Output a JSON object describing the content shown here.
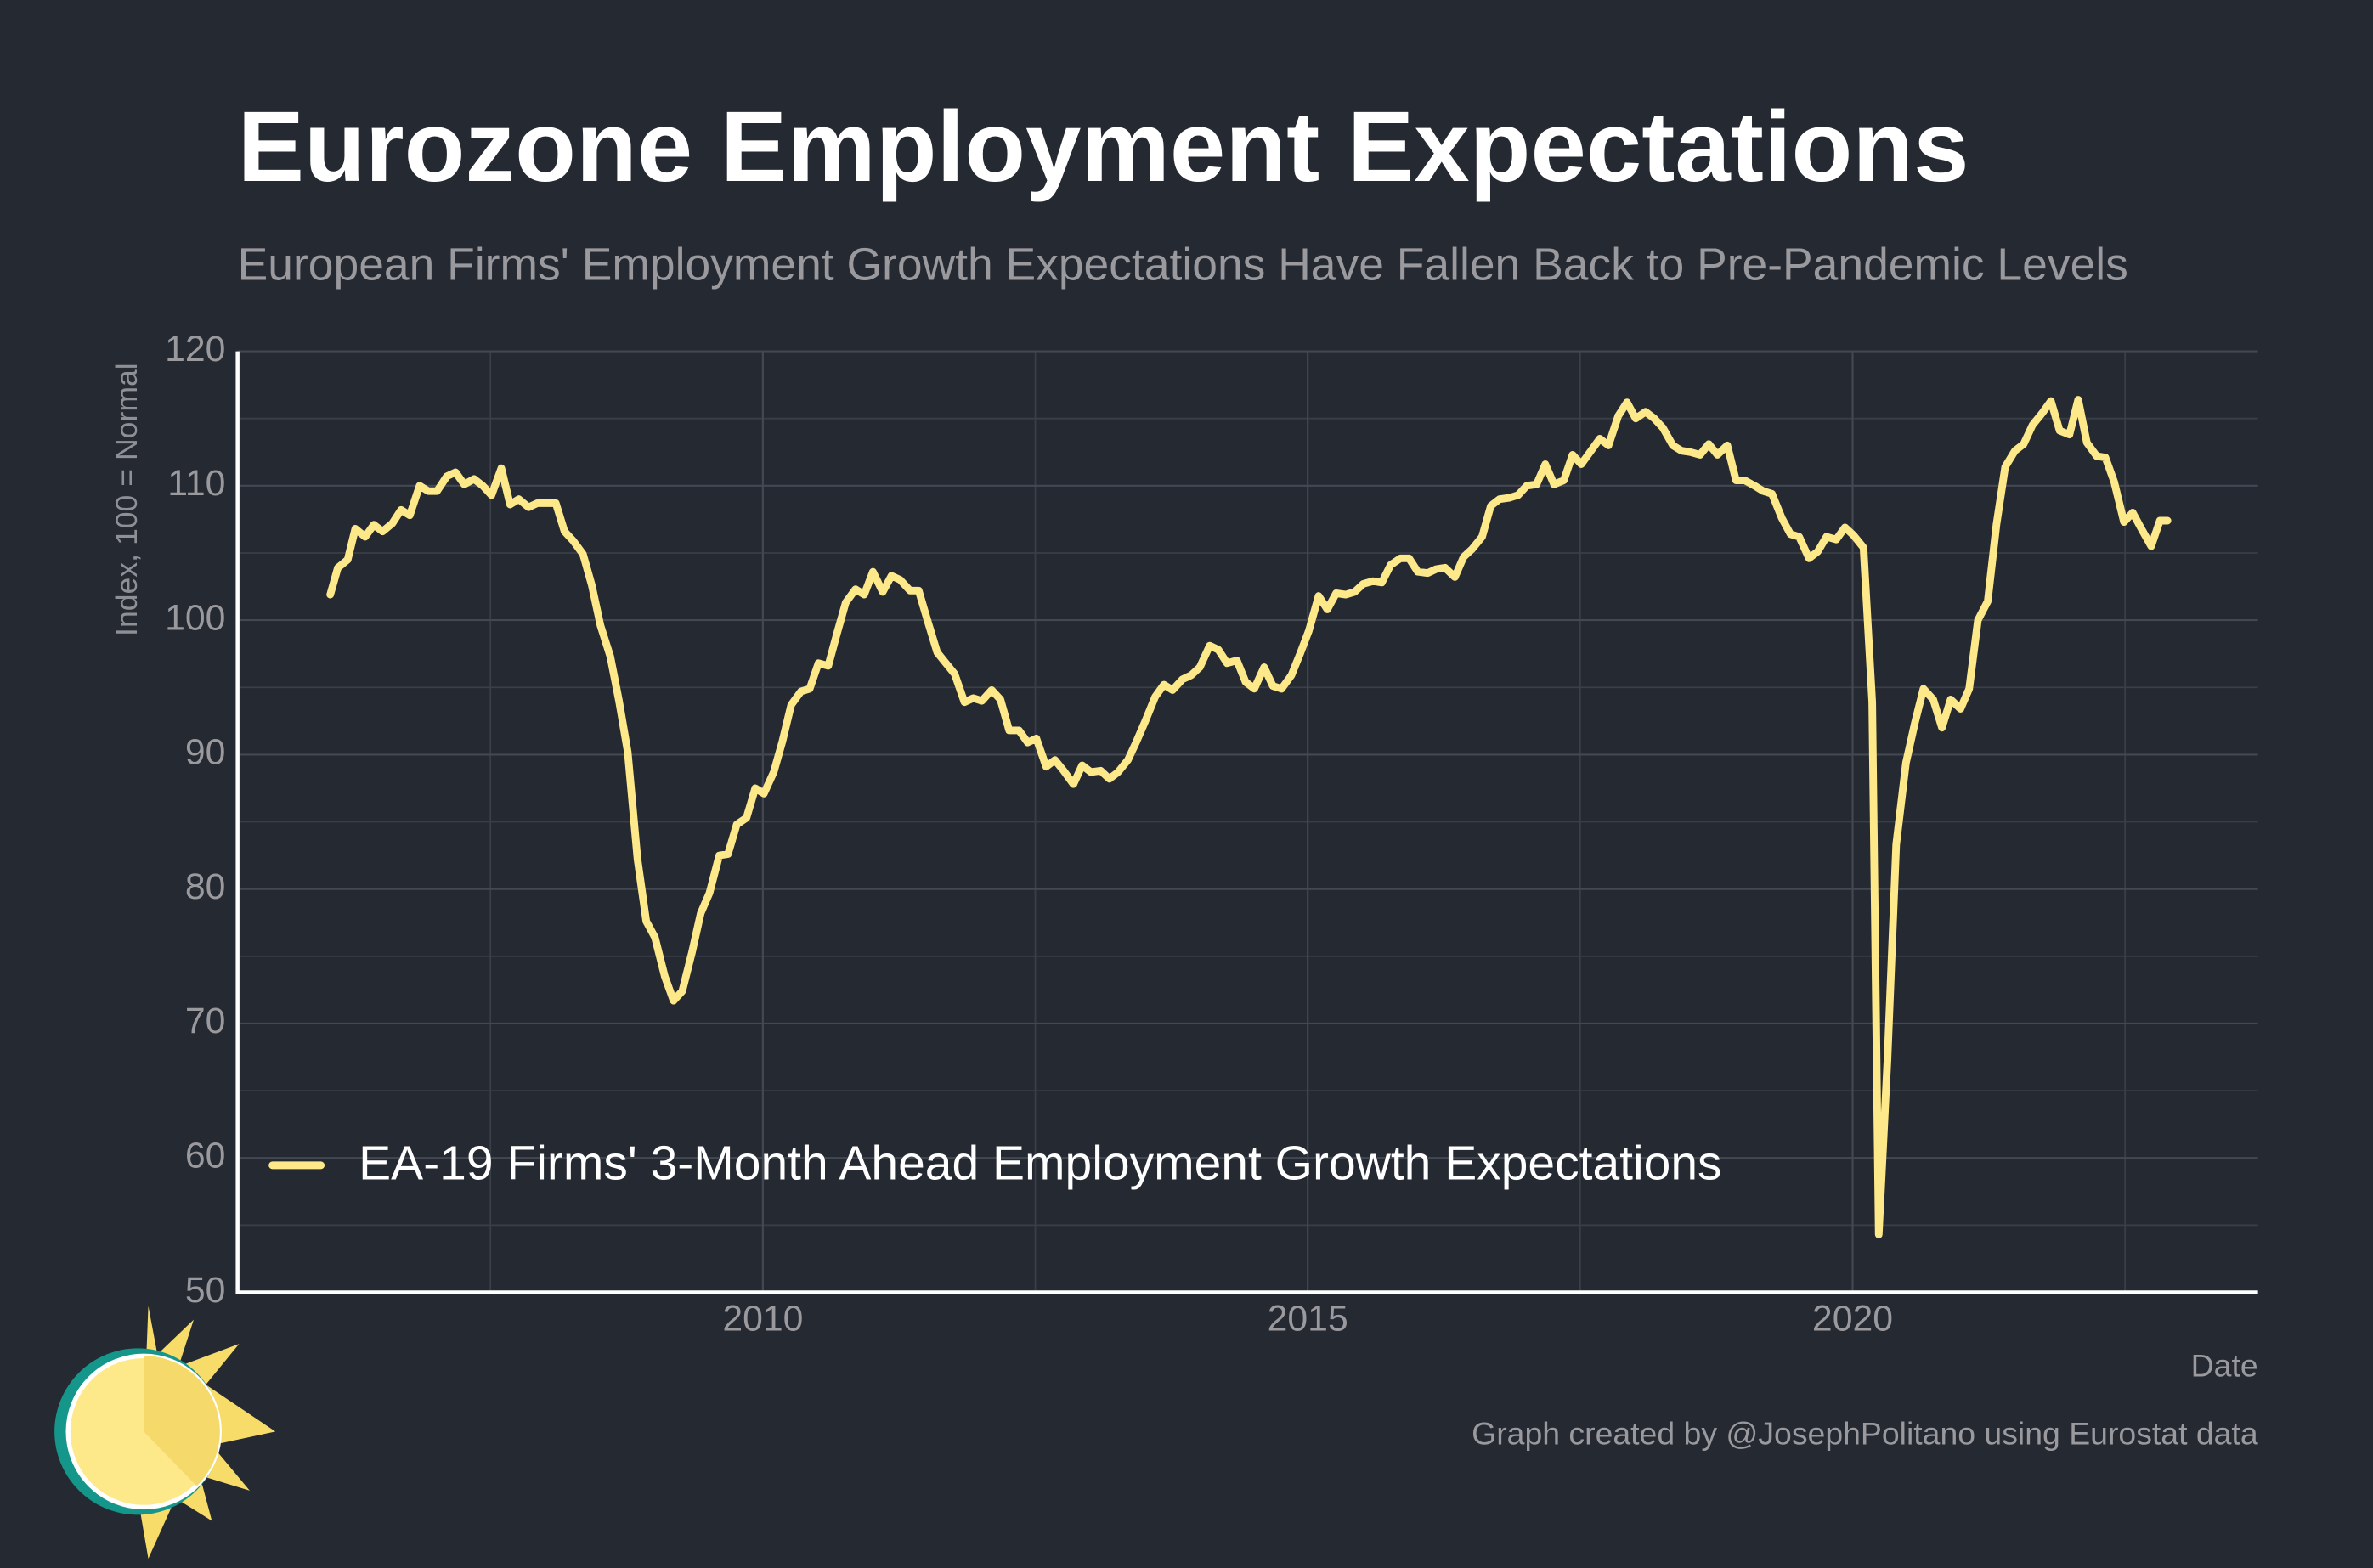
{
  "chart_data": {
    "type": "line",
    "title": "Eurozone Employment Expectations",
    "subtitle": "European Firms' Employment Growth Expectations Have Fallen Back to Pre-Pandemic Levels",
    "y_label": "Index, 100 = Normal",
    "x_label": "Date",
    "caption": "Graph created by @JosephPolitano using Eurostat data",
    "xlim": [
      2005.18,
      2023.72
    ],
    "ylim": [
      50,
      120
    ],
    "xticks": [
      2010,
      2015,
      2020
    ],
    "yticks": [
      50,
      60,
      70,
      80,
      90,
      100,
      110,
      120
    ],
    "grid": true,
    "legend": "lower left",
    "x": [
      2006.03,
      2006.1,
      2006.19,
      2006.26,
      2006.35,
      2006.43,
      2006.51,
      2006.6,
      2006.68,
      2006.76,
      2006.85,
      2006.93,
      2007.01,
      2007.1,
      2007.18,
      2007.26,
      2007.35,
      2007.43,
      2007.51,
      2007.6,
      2007.68,
      2007.76,
      2007.85,
      2007.93,
      2008.1,
      2008.18,
      2008.26,
      2008.35,
      2008.43,
      2008.51,
      2008.6,
      2008.68,
      2008.76,
      2008.85,
      2008.93,
      2009.01,
      2009.1,
      2009.18,
      2009.26,
      2009.35,
      2009.43,
      2009.51,
      2009.6,
      2009.68,
      2009.76,
      2009.85,
      2009.93,
      2010.01,
      2010.1,
      2010.18,
      2010.26,
      2010.35,
      2010.43,
      2010.51,
      2010.6,
      2010.68,
      2010.76,
      2010.85,
      2010.93,
      2011.01,
      2011.1,
      2011.18,
      2011.26,
      2011.35,
      2011.43,
      2011.51,
      2011.6,
      2011.68,
      2011.76,
      2011.85,
      2011.93,
      2012.01,
      2012.1,
      2012.18,
      2012.26,
      2012.35,
      2012.43,
      2012.51,
      2012.6,
      2012.68,
      2012.76,
      2012.85,
      2012.93,
      2013.01,
      2013.1,
      2013.18,
      2013.26,
      2013.35,
      2013.43,
      2013.51,
      2013.6,
      2013.68,
      2013.76,
      2013.85,
      2013.93,
      2014.01,
      2014.1,
      2014.18,
      2014.26,
      2014.35,
      2014.43,
      2014.51,
      2014.6,
      2014.68,
      2014.76,
      2014.85,
      2014.93,
      2015.01,
      2015.1,
      2015.18,
      2015.26,
      2015.35,
      2015.43,
      2015.51,
      2015.6,
      2015.68,
      2015.76,
      2015.85,
      2015.93,
      2016.01,
      2016.1,
      2016.18,
      2016.26,
      2016.35,
      2016.43,
      2016.51,
      2016.6,
      2016.68,
      2016.76,
      2016.85,
      2016.93,
      2017.01,
      2017.1,
      2017.18,
      2017.26,
      2017.35,
      2017.43,
      2017.51,
      2017.6,
      2017.68,
      2017.76,
      2017.85,
      2017.93,
      2018.01,
      2018.1,
      2018.18,
      2018.26,
      2018.35,
      2018.43,
      2018.51,
      2018.6,
      2018.68,
      2018.76,
      2018.85,
      2018.93,
      2019.01,
      2019.1,
      2019.18,
      2019.26,
      2019.35,
      2019.43,
      2019.51,
      2019.6,
      2019.68,
      2019.76,
      2019.85,
      2019.93,
      2020.01,
      2020.1,
      2020.18,
      2020.24,
      2020.32,
      2020.4,
      2020.49,
      2020.57,
      2020.65,
      2020.74,
      2020.82,
      2020.9,
      2020.99,
      2021.07,
      2021.15,
      2021.24,
      2021.32,
      2021.4,
      2021.49,
      2021.57,
      2021.65,
      2021.74,
      2021.82,
      2021.9,
      2021.99,
      2022.07,
      2022.15,
      2022.24,
      2022.32,
      2022.4,
      2022.49,
      2022.57,
      2022.65,
      2022.74,
      2022.82,
      2022.89
    ],
    "series": [
      {
        "name": "EA-19 Firms' 3-Month Ahead Employment Growth Expectations",
        "color": "#fde88a",
        "values": [
          101.9,
          103.9,
          104.5,
          106.8,
          106.2,
          107.1,
          106.6,
          107.2,
          108.2,
          107.8,
          110.0,
          109.6,
          109.6,
          110.7,
          111.0,
          110.1,
          110.5,
          110.0,
          109.3,
          111.3,
          108.6,
          109.0,
          108.4,
          108.7,
          108.7,
          106.6,
          105.9,
          104.9,
          102.6,
          99.6,
          97.3,
          94.0,
          90.2,
          82.2,
          77.6,
          76.4,
          73.5,
          71.7,
          72.4,
          75.3,
          78.2,
          79.7,
          82.5,
          82.6,
          84.8,
          85.3,
          87.5,
          87.1,
          88.7,
          91.0,
          93.7,
          94.7,
          94.9,
          96.8,
          96.6,
          99.0,
          101.3,
          102.3,
          101.9,
          103.6,
          102.1,
          103.3,
          103.0,
          102.2,
          102.2,
          100.0,
          97.6,
          96.8,
          96.0,
          93.9,
          94.2,
          94.0,
          94.8,
          94.1,
          91.8,
          91.8,
          90.9,
          91.2,
          89.1,
          89.6,
          88.8,
          87.8,
          89.2,
          88.7,
          88.8,
          88.2,
          88.7,
          89.6,
          91.0,
          92.5,
          94.3,
          95.2,
          94.8,
          95.6,
          95.9,
          96.5,
          98.1,
          97.8,
          96.8,
          97.0,
          95.4,
          94.9,
          96.5,
          95.1,
          94.9,
          95.9,
          97.5,
          99.2,
          101.8,
          100.8,
          102.0,
          101.9,
          102.1,
          102.7,
          102.9,
          102.8,
          104.1,
          104.6,
          104.6,
          103.6,
          103.5,
          103.8,
          103.9,
          103.2,
          104.7,
          105.3,
          106.2,
          108.5,
          109.0,
          109.1,
          109.3,
          110.0,
          110.1,
          111.6,
          110.1,
          110.4,
          112.3,
          111.6,
          112.6,
          113.5,
          113.0,
          115.2,
          116.2,
          115.0,
          115.5,
          115.0,
          114.3,
          113.0,
          112.6,
          112.5,
          112.3,
          113.1,
          112.3,
          113.0,
          110.4,
          110.4,
          110.0,
          109.6,
          109.4,
          107.6,
          106.4,
          106.2,
          104.6,
          105.1,
          106.2,
          106.0,
          106.9,
          106.3,
          105.4,
          93.9,
          54.3,
          67.3,
          83.3,
          89.4,
          92.3,
          94.9,
          94.1,
          92.0,
          94.1,
          93.4,
          94.9,
          100.0,
          101.4,
          107.1,
          111.4,
          112.6,
          113.1,
          114.5,
          115.4,
          116.3,
          114.1,
          113.8,
          116.4,
          113.2,
          112.2,
          112.1,
          110.3,
          107.3,
          108.0,
          106.8,
          105.5,
          107.4,
          107.4
        ]
      }
    ]
  }
}
